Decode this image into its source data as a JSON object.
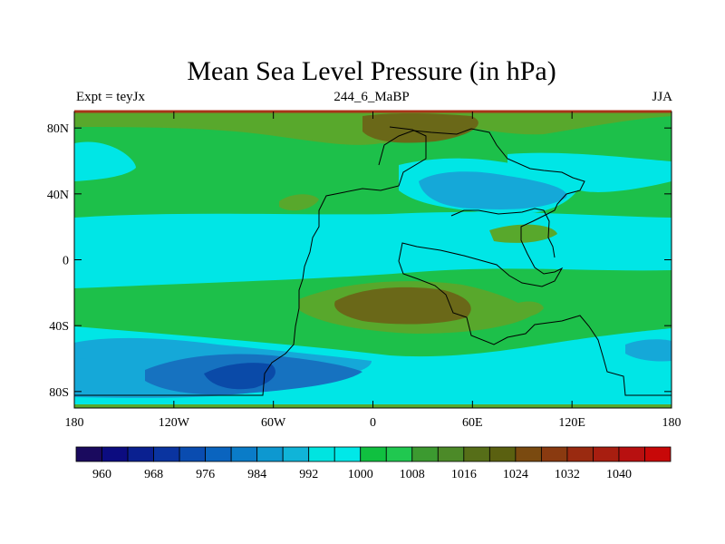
{
  "header": {
    "title": "Mean Sea Level Pressure (in hPa)",
    "left_label": "Expt = teyJx",
    "center_label": "244_6_MaBP",
    "right_label": "JJA"
  },
  "chart_data": {
    "type": "heatmap",
    "title": "Mean Sea Level Pressure (in hPa)",
    "subtitle_left": "Expt = teyJx",
    "subtitle_center": "244_6_MaBP",
    "subtitle_right": "JJA",
    "xlim": [
      -180,
      180
    ],
    "ylim": [
      -90,
      90
    ],
    "x_ticks": [
      {
        "value": -180,
        "label": "180"
      },
      {
        "value": -120,
        "label": "120W"
      },
      {
        "value": -60,
        "label": "60W"
      },
      {
        "value": 0,
        "label": "0"
      },
      {
        "value": 60,
        "label": "60E"
      },
      {
        "value": 120,
        "label": "120E"
      },
      {
        "value": 180,
        "label": "180"
      }
    ],
    "y_ticks": [
      {
        "value": 80,
        "label": "80N"
      },
      {
        "value": 40,
        "label": "40N"
      },
      {
        "value": 0,
        "label": "0"
      },
      {
        "value": -40,
        "label": "40S"
      },
      {
        "value": -80,
        "label": "80S"
      }
    ],
    "colorbar": {
      "labels": [
        "960",
        "968",
        "976",
        "984",
        "992",
        "1000",
        "1008",
        "1016",
        "1024",
        "1032",
        "1040"
      ],
      "colors": [
        "#1a0a5e",
        "#0c0c80",
        "#0a2090",
        "#0a34a0",
        "#0a4cb0",
        "#0a64bf",
        "#0a7cc8",
        "#0d98d0",
        "#10b4d8",
        "#00e4e0",
        "#00e8e8",
        "#10c040",
        "#20c850",
        "#3c9a30",
        "#4c8a28",
        "#566e18",
        "#5a6010",
        "#7a4a10",
        "#8a3a10",
        "#9a2a10",
        "#a81e10",
        "#b81010",
        "#c80808"
      ]
    },
    "colors": {
      "cyan": "#00e6e6",
      "green": "#1dc04a",
      "dark_green": "#58a82c",
      "olive": "#6a6818",
      "light_blue": "#15a8d8",
      "blue": "#1672c0",
      "dark_blue": "#0a4aa8",
      "top_band": "#a83418"
    }
  }
}
